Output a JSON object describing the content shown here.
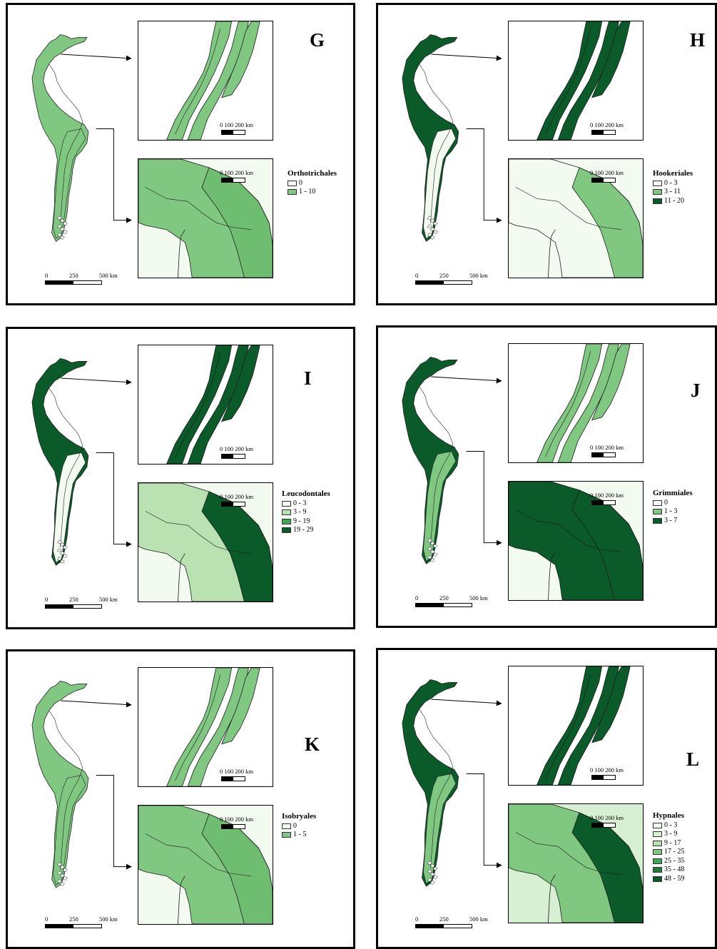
{
  "panels": [
    {
      "letter": "G",
      "legend": {
        "title": "Orthotrichales",
        "items": [
          {
            "label": "0",
            "color": "#f3faf0"
          },
          {
            "label": "1 - 10",
            "color": "#80c881"
          }
        ]
      },
      "big_scale": {
        "l0": "0",
        "l1": "250",
        "l2": "500 km"
      },
      "small_scale_top": "0   100 200 km",
      "small_scale_bottom": "0   100 200 km",
      "fills": {
        "north": "#80c881",
        "south_main": "#80c881",
        "south_alt": "#6fbd71",
        "coast": "#f3faf0",
        "map_overview": "#80c881",
        "map_overview_south": "#80c881"
      }
    },
    {
      "letter": "H",
      "legend": {
        "title": "Hookeriales",
        "items": [
          {
            "label": "0 - 3",
            "color": "#f3faf0"
          },
          {
            "label": "3 - 11",
            "color": "#80c881"
          },
          {
            "label": "11 - 20",
            "color": "#0b5a2a"
          }
        ]
      },
      "big_scale": {
        "l0": "0",
        "l1": "250",
        "l2": "500 km"
      },
      "small_scale_top": "0   100 200 km",
      "small_scale_bottom": "0   100 200 km",
      "fills": {
        "north": "#0b5a2a",
        "south_main": "#f3faf0",
        "south_alt": "#80c881",
        "coast": "#f3faf0",
        "map_overview": "#0b5a2a",
        "map_overview_south": "#f3faf0"
      }
    },
    {
      "letter": "I",
      "legend": {
        "title": "Leucodontales",
        "items": [
          {
            "label": "0 - 3",
            "color": "#f3faf0"
          },
          {
            "label": "3 - 9",
            "color": "#b9e1b1"
          },
          {
            "label": "9 - 19",
            "color": "#41a85a"
          },
          {
            "label": "19 - 29",
            "color": "#0b5a2a"
          }
        ]
      },
      "big_scale": {
        "l0": "0",
        "l1": "250",
        "l2": "500 km"
      },
      "small_scale_top": "0   100 200 km",
      "small_scale_bottom": "0   100 200 km",
      "fills": {
        "north": "#0b5a2a",
        "south_main": "#b9e1b1",
        "south_alt": "#0b5a2a",
        "coast": "#f3faf0",
        "map_overview": "#0b5a2a",
        "map_overview_south": "#f3faf0"
      }
    },
    {
      "letter": "J",
      "legend": {
        "title": "Grimmiales",
        "items": [
          {
            "label": "0",
            "color": "#f3faf0"
          },
          {
            "label": "1 - 3",
            "color": "#80c881"
          },
          {
            "label": "3 - 7",
            "color": "#0b5a2a"
          }
        ]
      },
      "big_scale": {
        "l0": "0",
        "l1": "250",
        "l2": "500 km"
      },
      "small_scale_top": "0   100 200 km",
      "small_scale_bottom": "0   100 200 km",
      "fills": {
        "north": "#80c881",
        "south_main": "#0b5a2a",
        "south_alt": "#0b5a2a",
        "coast": "#f3faf0",
        "map_overview": "#0b5a2a",
        "map_overview_south": "#80c881"
      }
    },
    {
      "letter": "K",
      "legend": {
        "title": "Isobryales",
        "items": [
          {
            "label": "0",
            "color": "#f3faf0"
          },
          {
            "label": "1 - 5",
            "color": "#80c881"
          }
        ]
      },
      "big_scale": {
        "l0": "0",
        "l1": "250",
        "l2": "500 km"
      },
      "small_scale_top": "0   100 200 km",
      "small_scale_bottom": "0   100 200 km",
      "fills": {
        "north": "#80c881",
        "south_main": "#80c881",
        "south_alt": "#6fbd71",
        "coast": "#f3faf0",
        "map_overview": "#80c881",
        "map_overview_south": "#80c881"
      }
    },
    {
      "letter": "L",
      "legend": {
        "title": "Hypnales",
        "items": [
          {
            "label": "0 - 3",
            "color": "#f3faf0"
          },
          {
            "label": "3 - 9",
            "color": "#d7efd2"
          },
          {
            "label": "9 - 17",
            "color": "#b9e1b1"
          },
          {
            "label": "17 - 25",
            "color": "#80c881"
          },
          {
            "label": "25 - 35",
            "color": "#41a85a"
          },
          {
            "label": "35 - 48",
            "color": "#1f7a3c"
          },
          {
            "label": "48 - 59",
            "color": "#0b5a2a"
          }
        ]
      },
      "big_scale": {
        "l0": "0",
        "l1": "250",
        "l2": "500 km"
      },
      "small_scale_top": "0   100 200 km",
      "small_scale_bottom": "0   100 200 km",
      "fills": {
        "north": "#0b5a2a",
        "south_main": "#80c881",
        "south_alt": "#0b5a2a",
        "coast": "#d7efd2",
        "map_overview": "#0b5a2a",
        "map_overview_south": "#80c881"
      }
    }
  ]
}
